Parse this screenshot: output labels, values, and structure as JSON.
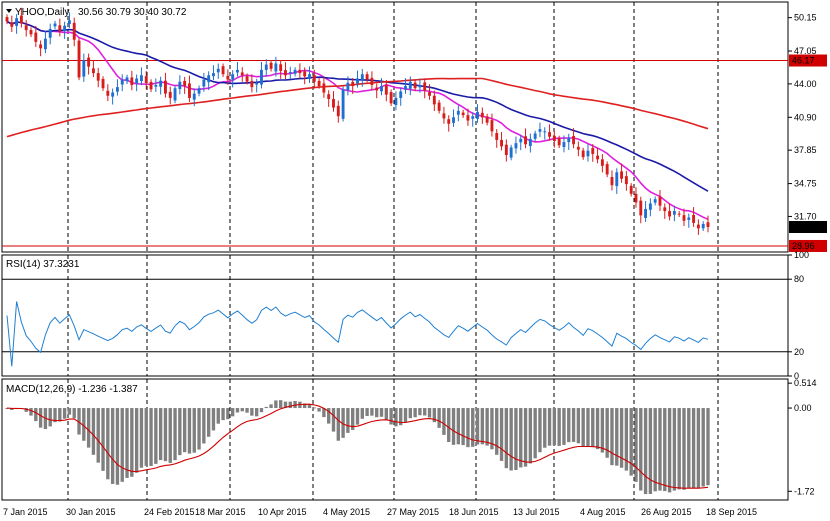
{
  "header": {
    "symbol_label": "YHOO,Daily",
    "ohlc_label": "30.56 30.79 30.40 30.72",
    "rsi_label": "RSI(14) 37.3231",
    "macd_label": "MACD(12,26,9) -1.236 -1.387"
  },
  "colors": {
    "bull": "#1f6fd1",
    "bear": "#d81b1b",
    "ma_fast": "#e020e0",
    "ma_mid": "#1a1aa8",
    "ma_slow": "#e02020",
    "rsi": "#1f7fd1",
    "macd_hist": "#7f7f7f",
    "macd_signal": "#d00000",
    "hline": "#d00000"
  },
  "chart_data": [
    {
      "type": "candlestick",
      "panel": "price",
      "ylim": [
        28.4,
        51.6
      ],
      "y_ticks": [
        "50.15",
        "47.05",
        "44.00",
        "40.90",
        "37.85",
        "34.75",
        "31.70"
      ],
      "price_tag_current": "30.72",
      "horizontal_lines": [
        {
          "value": 46.17,
          "label": "46.17"
        },
        {
          "value": 28.96,
          "label": "28.96"
        }
      ],
      "x_labels": [
        "7 Jan 2015",
        "30 Jan 2015",
        "24 Feb 2015",
        "18 Mar 2015",
        "10 Apr 2015",
        "4 May 2015",
        "27 May 2015",
        "18 Jun 2015",
        "13 Jul 2015",
        "4 Aug 2015",
        "26 Aug 2015",
        "18 Sep 2015"
      ],
      "closes": [
        49.8,
        49.3,
        50.1,
        49.6,
        49.0,
        48.6,
        47.9,
        47.3,
        48.2,
        49.1,
        49.6,
        48.9,
        49.4,
        49.9,
        48.1,
        44.6,
        46.2,
        45.6,
        45.0,
        44.3,
        43.6,
        42.9,
        43.2,
        43.7,
        44.4,
        44.6,
        43.9,
        44.5,
        44.8,
        44.1,
        43.5,
        43.9,
        44.3,
        43.1,
        42.7,
        43.6,
        44.2,
        43.8,
        42.7,
        43.1,
        43.6,
        44.4,
        44.8,
        45.0,
        45.4,
        44.9,
        44.4,
        44.9,
        45.3,
        44.8,
        44.2,
        43.7,
        44.1,
        45.3,
        45.8,
        45.4,
        45.9,
        45.2,
        44.8,
        45.1,
        45.3,
        45.0,
        44.7,
        44.9,
        44.2,
        43.8,
        43.2,
        42.6,
        41.8,
        41.0,
        43.5,
        44.1,
        43.8,
        44.5,
        44.9,
        44.4,
        43.9,
        43.4,
        43.8,
        43.0,
        42.2,
        42.7,
        43.3,
        43.8,
        44.2,
        43.6,
        43.9,
        43.4,
        42.9,
        42.1,
        41.5,
        40.8,
        40.3,
        40.9,
        41.5,
        41.1,
        40.6,
        41.0,
        41.4,
        40.9,
        40.4,
        39.6,
        38.8,
        38.2,
        37.4,
        38.1,
        38.5,
        38.9,
        38.4,
        38.9,
        39.4,
        39.8,
        39.6,
        39.1,
        38.7,
        38.3,
        38.6,
        39.0,
        38.4,
        37.9,
        37.2,
        37.8,
        37.5,
        37.0,
        36.4,
        35.6,
        34.6,
        35.8,
        35.2,
        34.7,
        33.8,
        33.0,
        31.8,
        32.4,
        32.9,
        33.3,
        32.7,
        32.2,
        31.7,
        32.2,
        31.9,
        31.3,
        31.6,
        31.1,
        30.6,
        31.0,
        30.72
      ]
    },
    {
      "type": "line",
      "panel": "rsi",
      "series": [
        {
          "name": "RSI(14)"
        }
      ],
      "ylim": [
        0,
        100
      ],
      "y_ticks": [
        "100",
        "80",
        "20",
        "0"
      ],
      "levels": [
        80,
        20
      ]
    },
    {
      "type": "bar",
      "panel": "macd",
      "series": [
        {
          "name": "MACD(12,26,9)"
        }
      ],
      "ylim": [
        -1.9,
        0.6
      ],
      "y_ticks": [
        "0.514",
        "0.00",
        "-1.72"
      ]
    }
  ]
}
